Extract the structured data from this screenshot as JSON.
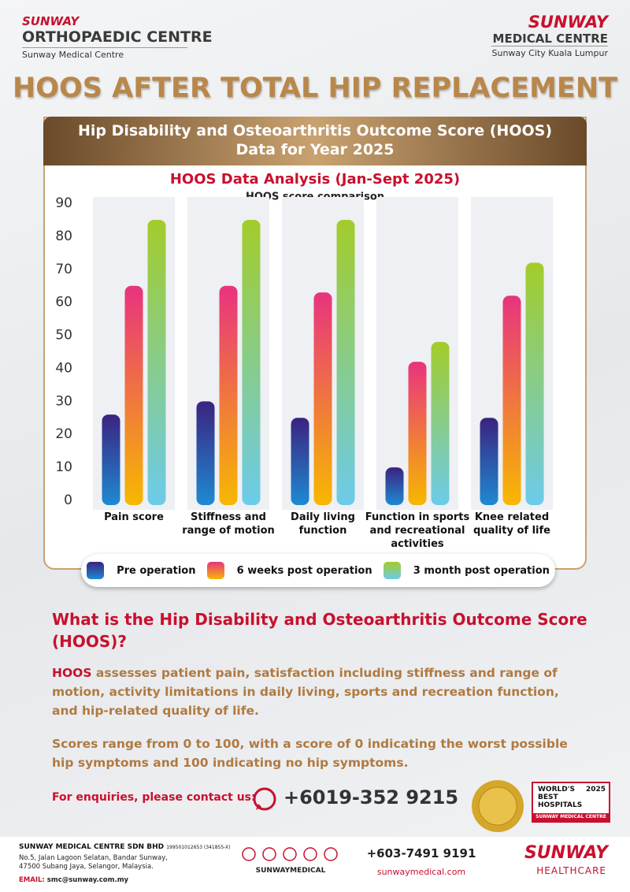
{
  "header": {
    "left_brand": "SUNWAY",
    "left_name": "ORTHOPAEDIC CENTRE",
    "left_sub": "Sunway Medical Centre",
    "right_brand": "SUNWAY",
    "right_name": "MEDICAL CENTRE",
    "right_sub": "Sunway City Kuala Lumpur"
  },
  "title": "HOOS AFTER TOTAL HIP REPLACEMENT",
  "banner": {
    "line1": "Hip Disability and Osteoarthritis Outcome Score (HOOS)",
    "line2": "Data for Year 2025"
  },
  "chart_data": {
    "type": "bar",
    "title": "HOOS Data Analysis (Jan-Sept 2025)",
    "subtitle": "HOOS score comparison",
    "categories": [
      "Pain score",
      "Stiffness and\nrange of motion",
      "Daily living\nfunction",
      "Function in sports\nand recreational\nactivities",
      "Knee related\nquality of life"
    ],
    "series": [
      {
        "name": "Pre operation",
        "color": "#3b2380",
        "color2": "#1e8ad2",
        "values": [
          26,
          30,
          25,
          10,
          25
        ]
      },
      {
        "name": "6 weeks post operation",
        "color": "#e8337f",
        "color2": "#f7b800",
        "values": [
          65,
          65,
          63,
          42,
          62
        ]
      },
      {
        "name": "3 month post operation",
        "color": "#a3cc2a",
        "color2": "#6ccbea",
        "values": [
          85,
          85,
          85,
          48,
          72
        ]
      }
    ],
    "ylim": [
      0,
      90
    ],
    "yticks": [
      0,
      10,
      20,
      30,
      40,
      50,
      60,
      70,
      80,
      90
    ],
    "grid": false
  },
  "info": {
    "heading": "What is the Hip Disability and Osteoarthritis Outcome Score (HOOS)?",
    "p1_lead": "HOOS",
    "p1_rest": "assesses patient pain, satisfaction including stiffness and range of motion, activity limitations in daily living, sports and recreation function, and hip-related quality of life.",
    "p2": "Scores range from 0 to 100, with a score of 0 indicating the worst possible hip symptoms and 100 indicating no hip symptoms."
  },
  "contact": {
    "label": "For enquiries, please contact us:",
    "phone": "+6019-352 9215"
  },
  "badge": {
    "line1": "WORLD'S",
    "line2": "BEST",
    "line3": "HOSPITALS",
    "year": "2025",
    "org": "SUNWAY MEDICAL CENTRE"
  },
  "footer": {
    "company": "SUNWAY MEDICAL CENTRE SDN BHD",
    "reg": "199501012653 (341855-X)",
    "address1": "No.5, Jalan Lagoon Selatan, Bandar Sunway,",
    "address2": "47500 Subang Jaya, Selangor, Malaysia.",
    "email_label": "EMAIL:",
    "email": "smc@sunway.com.my",
    "social": "SUNWAYMEDICAL",
    "phone": "+603-7491 9191",
    "url": "sunwaymedical.com",
    "brand": "SUNWAY",
    "brand_sub": "HEALTHCARE"
  }
}
